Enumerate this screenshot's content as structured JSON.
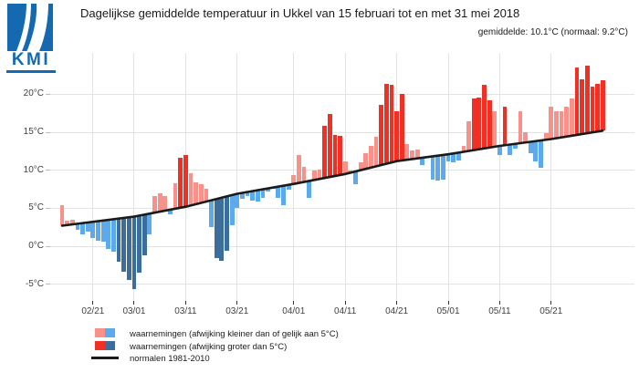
{
  "header": {
    "logo_text": "KMI",
    "title": "Dagelijkse gemiddelde temperatuur in Ukkel van 15 februari tot en met 31 mei 2018",
    "subtitle": "gemiddelde: 10.1°C (normaal: 9.2°C)",
    "period_mean_c": 10.1,
    "period_normal_c": 9.2
  },
  "colors": {
    "light_red": "#F9918B",
    "dark_red": "#EF3125",
    "light_blue": "#5CA9EB",
    "dark_blue": "#3C6E9D",
    "normal_line": "#1A1A1A",
    "gridline": "#E3E3E3",
    "axis_tick": "#333333",
    "axis_text": "#404040",
    "logo_blue": "#1569B0",
    "background": "#FFFFFF"
  },
  "legend": {
    "items": [
      {
        "label": "waarnemingen (afwijking kleiner dan of gelijk aan 5°C)",
        "type": "small-deviation"
      },
      {
        "label": "waarnemingen (afwijking groter dan 5°C)",
        "type": "large-deviation"
      },
      {
        "label": "normalen 1981-2010",
        "type": "normals-line"
      }
    ]
  },
  "chart_data": {
    "type": "bar",
    "title": "Dagelijkse gemiddelde temperatuur in Ukkel van 15 februari tot en met 31 mei 2018",
    "unit": "°C",
    "ylabel": "",
    "xlabel": "",
    "ylim": [
      -7,
      24.5
    ],
    "grid": true,
    "legend_position": "bottom",
    "deviation_threshold_c": 5,
    "y_ticks": [
      {
        "value": -5,
        "label": "-5°C"
      },
      {
        "value": 0,
        "label": "0°C"
      },
      {
        "value": 5,
        "label": "5°C"
      },
      {
        "value": 10,
        "label": "10°C"
      },
      {
        "value": 15,
        "label": "15°C"
      },
      {
        "value": 20,
        "label": "20°C"
      }
    ],
    "x_ticks": [
      {
        "day": 6,
        "label": "02/21"
      },
      {
        "day": 14,
        "label": "03/01"
      },
      {
        "day": 24,
        "label": "03/11"
      },
      {
        "day": 34,
        "label": "03/21"
      },
      {
        "day": 45,
        "label": "04/01"
      },
      {
        "day": 55,
        "label": "04/11"
      },
      {
        "day": 65,
        "label": "04/21"
      },
      {
        "day": 75,
        "label": "05/01"
      },
      {
        "day": 85,
        "label": "05/11"
      },
      {
        "day": 95,
        "label": "05/21"
      }
    ],
    "normals_anchors": [
      [
        0,
        2.7
      ],
      [
        14,
        3.9
      ],
      [
        24,
        5.2
      ],
      [
        34,
        6.9
      ],
      [
        45,
        8.2
      ],
      [
        55,
        9.5
      ],
      [
        65,
        11.2
      ],
      [
        75,
        12.1
      ],
      [
        85,
        13.2
      ],
      [
        95,
        14.1
      ],
      [
        105,
        15.2
      ]
    ],
    "dates": [
      "02/15",
      "02/16",
      "02/17",
      "02/18",
      "02/19",
      "02/20",
      "02/21",
      "02/22",
      "02/23",
      "02/24",
      "02/25",
      "02/26",
      "02/27",
      "02/28",
      "03/01",
      "03/02",
      "03/03",
      "03/04",
      "03/05",
      "03/06",
      "03/07",
      "03/08",
      "03/09",
      "03/10",
      "03/11",
      "03/12",
      "03/13",
      "03/14",
      "03/15",
      "03/16",
      "03/17",
      "03/18",
      "03/19",
      "03/20",
      "03/21",
      "03/22",
      "03/23",
      "03/24",
      "03/25",
      "03/26",
      "03/27",
      "03/28",
      "03/29",
      "03/30",
      "03/31",
      "04/01",
      "04/02",
      "04/03",
      "04/04",
      "04/05",
      "04/06",
      "04/07",
      "04/08",
      "04/09",
      "04/10",
      "04/11",
      "04/12",
      "04/13",
      "04/14",
      "04/15",
      "04/16",
      "04/17",
      "04/18",
      "04/19",
      "04/20",
      "04/21",
      "04/22",
      "04/23",
      "04/24",
      "04/25",
      "04/26",
      "04/27",
      "04/28",
      "04/29",
      "04/30",
      "05/01",
      "05/02",
      "05/03",
      "05/04",
      "05/05",
      "05/06",
      "05/07",
      "05/08",
      "05/09",
      "05/10",
      "05/11",
      "05/12",
      "05/13",
      "05/14",
      "05/15",
      "05/16",
      "05/17",
      "05/18",
      "05/19",
      "05/20",
      "05/21",
      "05/22",
      "05/23",
      "05/24",
      "05/25",
      "05/26",
      "05/27",
      "05/28",
      "05/29",
      "05/30",
      "05/31"
    ],
    "temps": [
      5.4,
      3.4,
      3.5,
      2.2,
      1.6,
      1.9,
      1.1,
      0.7,
      0.6,
      -0.4,
      -0.7,
      -2.0,
      -3.4,
      -4.5,
      -5.6,
      -3.5,
      -1.2,
      1.5,
      6.6,
      7.0,
      6.6,
      4.2,
      8.3,
      11.6,
      12.0,
      9.6,
      8.4,
      8.2,
      7.6,
      2.5,
      -1.6,
      -1.9,
      -0.6,
      2.8,
      5.0,
      6.2,
      6.6,
      6.0,
      5.9,
      6.4,
      7.2,
      7.6,
      6.4,
      5.4,
      7.4,
      9.4,
      12.0,
      10.4,
      6.3,
      10.0,
      10.1,
      15.8,
      17.4,
      14.6,
      14.5,
      11.2,
      10.0,
      8.2,
      11.0,
      12.2,
      13.2,
      14.4,
      18.6,
      21.4,
      21.2,
      17.8,
      20.0,
      13.4,
      12.6,
      12.7,
      10.7,
      11.9,
      8.8,
      8.6,
      8.7,
      11.2,
      11.0,
      11.3,
      13.2,
      16.4,
      19.4,
      19.6,
      21.2,
      19.2,
      17.8,
      12.0,
      18.4,
      12.0,
      12.8,
      17.8,
      15.0,
      12.2,
      11.2,
      10.3,
      14.9,
      18.4,
      17.8,
      17.8,
      18.4,
      19.4,
      23.5,
      22.0,
      23.8,
      21.0,
      21.4,
      21.9
    ]
  }
}
